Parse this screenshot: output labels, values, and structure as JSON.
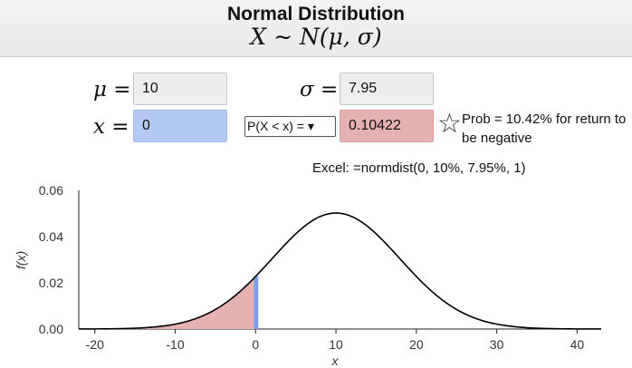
{
  "header": {
    "title": "Normal Distribution",
    "formula": "X ∼ N(μ, σ)"
  },
  "inputs": {
    "mu_label": "μ",
    "mu_value": "10",
    "sigma_label": "σ",
    "sigma_value": "7.95",
    "x_label": "x",
    "x_value": "0",
    "eq": "="
  },
  "probability": {
    "selected_option": "P(X < x) = ▾",
    "result": "0.10422"
  },
  "annotation": {
    "note": "Prob = 10.42% for return to be negative",
    "excel": "Excel: =normdist(0, 10%, 7.95%, 1)"
  },
  "colors": {
    "curve": "#000000",
    "shade": "#e6b1b1",
    "marker": "#7aa0ef",
    "x_field": "#b4c9f4",
    "result_field": "#e6b1b1"
  },
  "chart_data": {
    "type": "area",
    "mu": 10,
    "sigma": 7.95,
    "shade_below_x": 0,
    "xlim": [
      -22,
      43
    ],
    "ylim": [
      0,
      0.06
    ],
    "xticks": [
      -20,
      -10,
      0,
      10,
      20,
      30,
      40
    ],
    "yticks": [
      0.0,
      0.02,
      0.04,
      0.06
    ],
    "ytick_labels": [
      "0.00",
      "0.02",
      "0.04",
      "0.06"
    ],
    "xlabel": "x",
    "ylabel": "f(x)"
  }
}
